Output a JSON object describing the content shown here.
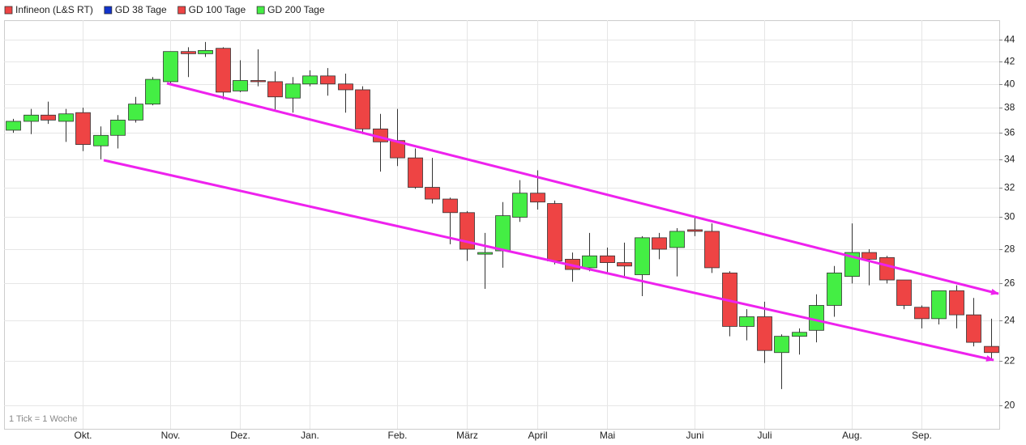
{
  "chart_data": {
    "type": "candlestick",
    "legend": [
      {
        "name": "Infineon (L&S RT)",
        "color": "#ee4444"
      },
      {
        "name": "GD 38 Tage",
        "color": "#1133cc"
      },
      {
        "name": "GD 100 Tage",
        "color": "#ee4444"
      },
      {
        "name": "GD 200 Tage",
        "color": "#44ee44"
      }
    ],
    "annotation": "1 Tick = 1 Woche",
    "up_color": "#44ee44",
    "down_color": "#ee4444",
    "ylog": true,
    "grid": true,
    "ylim": [
      19,
      45.9
    ],
    "yticks": [
      20,
      22,
      24,
      26,
      28,
      30,
      32,
      34,
      36,
      38,
      40,
      42,
      44
    ],
    "categories": [
      null,
      null,
      null,
      null,
      "Okt.",
      null,
      null,
      null,
      null,
      "Nov.",
      null,
      null,
      null,
      "Dez.",
      null,
      null,
      null,
      "Jan.",
      null,
      null,
      null,
      null,
      "Feb.",
      null,
      null,
      null,
      "März",
      null,
      null,
      null,
      "April",
      null,
      null,
      null,
      "Mai",
      null,
      null,
      null,
      null,
      "Juni",
      null,
      null,
      null,
      "Juli",
      null,
      null,
      null,
      null,
      "Aug.",
      null,
      null,
      null,
      "Sep.",
      null,
      null,
      null,
      null
    ],
    "open": [
      36.2,
      36.9,
      37.4,
      36.9,
      37.6,
      35.0,
      35.8,
      37.0,
      38.3,
      40.2,
      42.9,
      42.7,
      43.2,
      39.4,
      40.3,
      40.2,
      38.8,
      40.0,
      40.7,
      40.0,
      39.5,
      36.3,
      35.4,
      34.1,
      32.0,
      31.2,
      30.3,
      27.7,
      27.9,
      30.0,
      31.6,
      30.9,
      27.4,
      26.9,
      27.6,
      27.2,
      26.5,
      28.7,
      28.1,
      29.2,
      29.1,
      26.6,
      23.7,
      24.2,
      22.4,
      23.2,
      23.5,
      24.8,
      26.4,
      27.8,
      27.5,
      26.2,
      24.7,
      24.1,
      25.6,
      24.3,
      22.7
    ],
    "high": [
      37.1,
      37.9,
      38.5,
      37.9,
      38.0,
      36.5,
      37.4,
      38.9,
      40.6,
      42.9,
      43.3,
      43.8,
      43.3,
      42.1,
      43.1,
      41.1,
      40.6,
      41.2,
      41.4,
      40.9,
      39.8,
      37.5,
      37.9,
      34.8,
      34.1,
      31.3,
      30.4,
      29.0,
      31.0,
      32.5,
      33.2,
      31.1,
      27.8,
      29.0,
      28.1,
      28.4,
      28.8,
      29.0,
      29.3,
      30.0,
      29.6,
      26.7,
      24.6,
      25.0,
      23.3,
      23.6,
      25.4,
      27.0,
      29.6,
      28.0,
      27.6,
      26.2,
      24.8,
      25.6,
      25.9,
      25.2,
      24.1
    ],
    "low": [
      36.0,
      35.9,
      36.7,
      35.3,
      34.6,
      34.0,
      34.8,
      36.8,
      38.2,
      40.0,
      40.6,
      42.4,
      38.7,
      39.3,
      39.8,
      37.8,
      37.6,
      39.8,
      39.0,
      37.6,
      35.9,
      33.1,
      33.5,
      31.9,
      30.9,
      28.3,
      27.3,
      25.7,
      26.9,
      29.7,
      30.5,
      27.1,
      26.1,
      26.7,
      26.6,
      26.3,
      25.3,
      27.4,
      26.4,
      28.8,
      26.6,
      23.2,
      23.0,
      21.9,
      20.7,
      22.3,
      22.9,
      24.2,
      26.0,
      25.9,
      26.0,
      24.6,
      23.6,
      23.8,
      23.6,
      22.7,
      22.1
    ],
    "close": [
      36.9,
      37.4,
      37.0,
      37.5,
      35.1,
      35.8,
      37.0,
      38.3,
      40.4,
      42.9,
      42.7,
      43.0,
      39.3,
      40.3,
      40.2,
      38.9,
      40.0,
      40.7,
      40.0,
      39.5,
      36.3,
      35.3,
      34.1,
      32.0,
      31.2,
      30.3,
      28.0,
      27.8,
      30.1,
      31.6,
      31.0,
      27.3,
      26.8,
      27.6,
      27.2,
      27.0,
      28.7,
      28.0,
      29.1,
      29.1,
      26.9,
      23.7,
      24.2,
      22.5,
      23.2,
      23.4,
      24.8,
      26.6,
      27.8,
      27.4,
      26.2,
      24.8,
      24.1,
      25.6,
      24.3,
      22.9,
      22.4
    ]
  }
}
